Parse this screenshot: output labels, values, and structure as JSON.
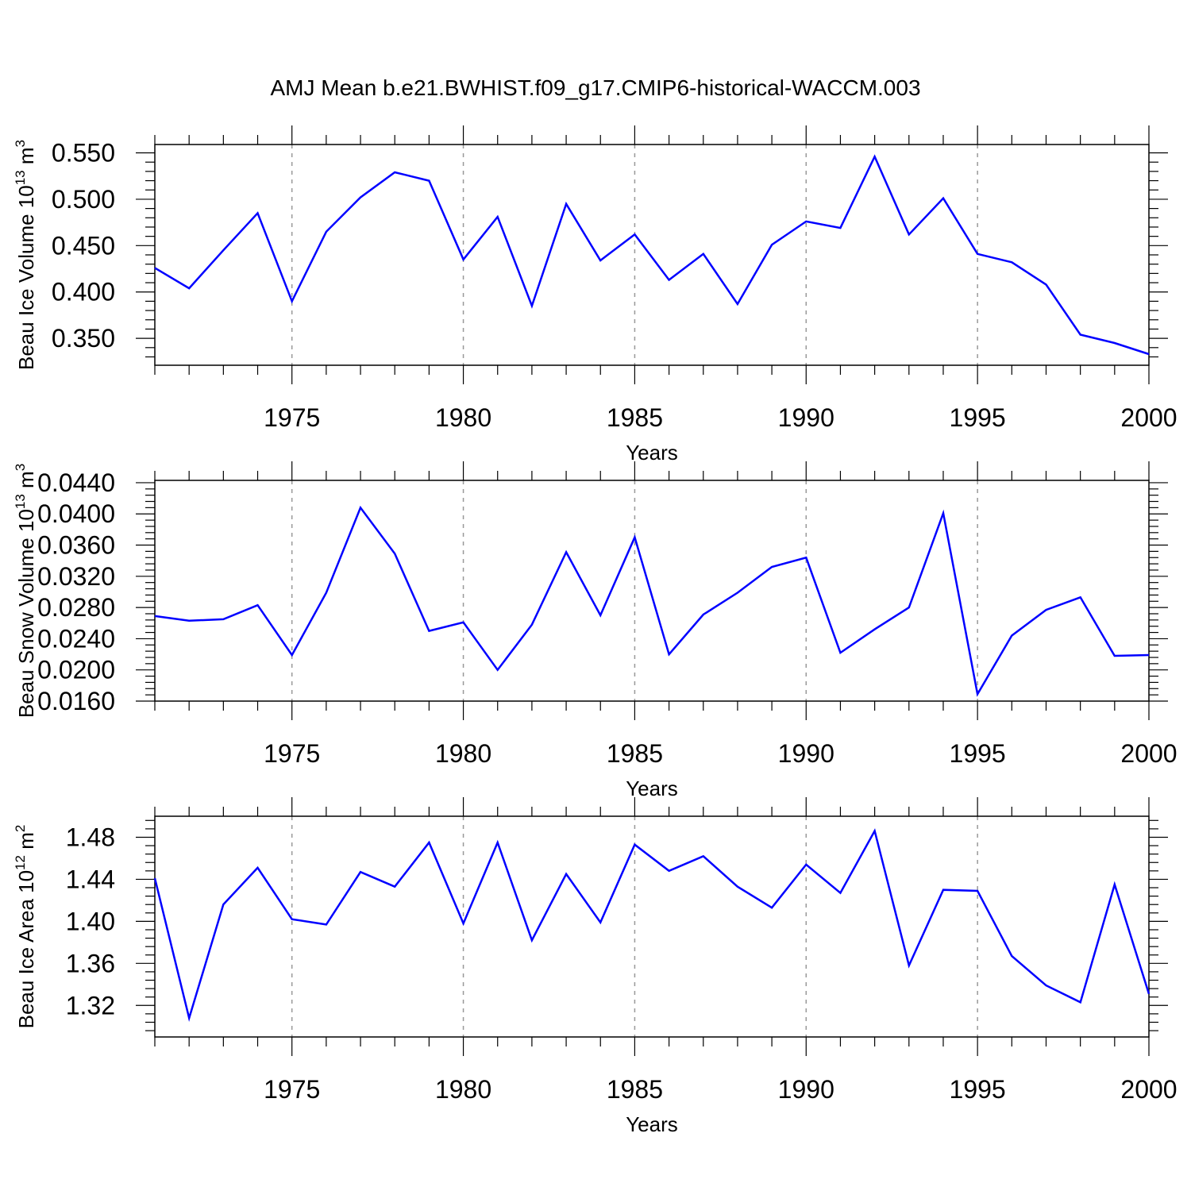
{
  "figure": {
    "title": "AMJ Mean b.e21.BWHIST.f09_g17.CMIP6-historical-WACCM.003",
    "line_color": "#0000ff",
    "grid_color": "#999999"
  },
  "chart_data": [
    {
      "type": "line",
      "title": "",
      "ylabel_main": "Beau Ice Volume 10",
      "ylabel_exp": "13",
      "ylabel_unit": " m",
      "ylabel_unit_exp": "3",
      "xlabel": "Years",
      "xlim": [
        1971,
        2000
      ],
      "ylim": [
        0.321,
        0.559
      ],
      "xticks": [
        1975,
        1980,
        1985,
        1990,
        1995,
        2000
      ],
      "xtick_labels": [
        "1975",
        "1980",
        "1985",
        "1990",
        "1995",
        "2000"
      ],
      "yticks": [
        0.35,
        0.4,
        0.45,
        0.5,
        0.55
      ],
      "ytick_labels": [
        "0.350",
        "0.400",
        "0.450",
        "0.500",
        "0.550"
      ],
      "grid": "x-dashed",
      "x": [
        1971,
        1972,
        1973,
        1974,
        1975,
        1976,
        1977,
        1978,
        1979,
        1980,
        1981,
        1982,
        1983,
        1984,
        1985,
        1986,
        1987,
        1988,
        1989,
        1990,
        1991,
        1992,
        1993,
        1994,
        1995,
        1996,
        1997,
        1998,
        1999,
        2000
      ],
      "series": [
        {
          "name": "Beau Ice Volume",
          "values": [
            0.426,
            0.404,
            0.445,
            0.485,
            0.39,
            0.465,
            0.502,
            0.529,
            0.52,
            0.435,
            0.481,
            0.385,
            0.495,
            0.434,
            0.462,
            0.413,
            0.441,
            0.387,
            0.451,
            0.476,
            0.469,
            0.546,
            0.462,
            0.501,
            0.441,
            0.432,
            0.408,
            0.354,
            0.345,
            0.333
          ]
        }
      ]
    },
    {
      "type": "line",
      "title": "",
      "ylabel_main": "Beau Snow Volume 10",
      "ylabel_exp": "13",
      "ylabel_unit": " m",
      "ylabel_unit_exp": "3",
      "xlabel": "Years",
      "xlim": [
        1971,
        2000
      ],
      "ylim": [
        0.016,
        0.0443
      ],
      "xticks": [
        1975,
        1980,
        1985,
        1990,
        1995,
        2000
      ],
      "xtick_labels": [
        "1975",
        "1980",
        "1985",
        "1990",
        "1995",
        "2000"
      ],
      "yticks": [
        0.016,
        0.02,
        0.024,
        0.028,
        0.032,
        0.036,
        0.04,
        0.044
      ],
      "ytick_labels": [
        "0.0160",
        "0.0200",
        "0.0240",
        "0.0280",
        "0.0320",
        "0.0360",
        "0.0400",
        "0.0440"
      ],
      "grid": "x-dashed",
      "x": [
        1971,
        1972,
        1973,
        1974,
        1975,
        1976,
        1977,
        1978,
        1979,
        1980,
        1981,
        1982,
        1983,
        1984,
        1985,
        1986,
        1987,
        1988,
        1989,
        1990,
        1991,
        1992,
        1993,
        1994,
        1995,
        1996,
        1997,
        1998,
        1999,
        2000
      ],
      "series": [
        {
          "name": "Beau Snow Volume",
          "values": [
            0.0269,
            0.0263,
            0.0265,
            0.0283,
            0.0219,
            0.0299,
            0.0408,
            0.0349,
            0.025,
            0.0261,
            0.02,
            0.0258,
            0.0351,
            0.027,
            0.037,
            0.022,
            0.0271,
            0.0299,
            0.0332,
            0.0344,
            0.0222,
            0.0252,
            0.028,
            0.0401,
            0.0169,
            0.0244,
            0.0277,
            0.0293,
            0.0218,
            0.0219
          ]
        }
      ]
    },
    {
      "type": "line",
      "title": "",
      "ylabel_main": "Beau Ice Area 10",
      "ylabel_exp": "12",
      "ylabel_unit": " m",
      "ylabel_unit_exp": "2",
      "xlabel": "Years",
      "xlim": [
        1971,
        2000
      ],
      "ylim": [
        1.29,
        1.5
      ],
      "xticks": [
        1975,
        1980,
        1985,
        1990,
        1995,
        2000
      ],
      "xtick_labels": [
        "1975",
        "1980",
        "1985",
        "1990",
        "1995",
        "2000"
      ],
      "yticks": [
        1.32,
        1.36,
        1.4,
        1.44,
        1.48
      ],
      "ytick_labels": [
        "1.32",
        "1.36",
        "1.40",
        "1.44",
        "1.48"
      ],
      "grid": "x-dashed",
      "x": [
        1971,
        1972,
        1973,
        1974,
        1975,
        1976,
        1977,
        1978,
        1979,
        1980,
        1981,
        1982,
        1983,
        1984,
        1985,
        1986,
        1987,
        1988,
        1989,
        1990,
        1991,
        1992,
        1993,
        1994,
        1995,
        1996,
        1997,
        1998,
        1999,
        2000
      ],
      "series": [
        {
          "name": "Beau Ice Area",
          "values": [
            1.441,
            1.308,
            1.416,
            1.451,
            1.402,
            1.397,
            1.447,
            1.433,
            1.475,
            1.398,
            1.475,
            1.382,
            1.445,
            1.399,
            1.473,
            1.448,
            1.462,
            1.433,
            1.413,
            1.454,
            1.427,
            1.486,
            1.358,
            1.43,
            1.429,
            1.367,
            1.339,
            1.323,
            1.435,
            1.331
          ]
        }
      ]
    }
  ]
}
